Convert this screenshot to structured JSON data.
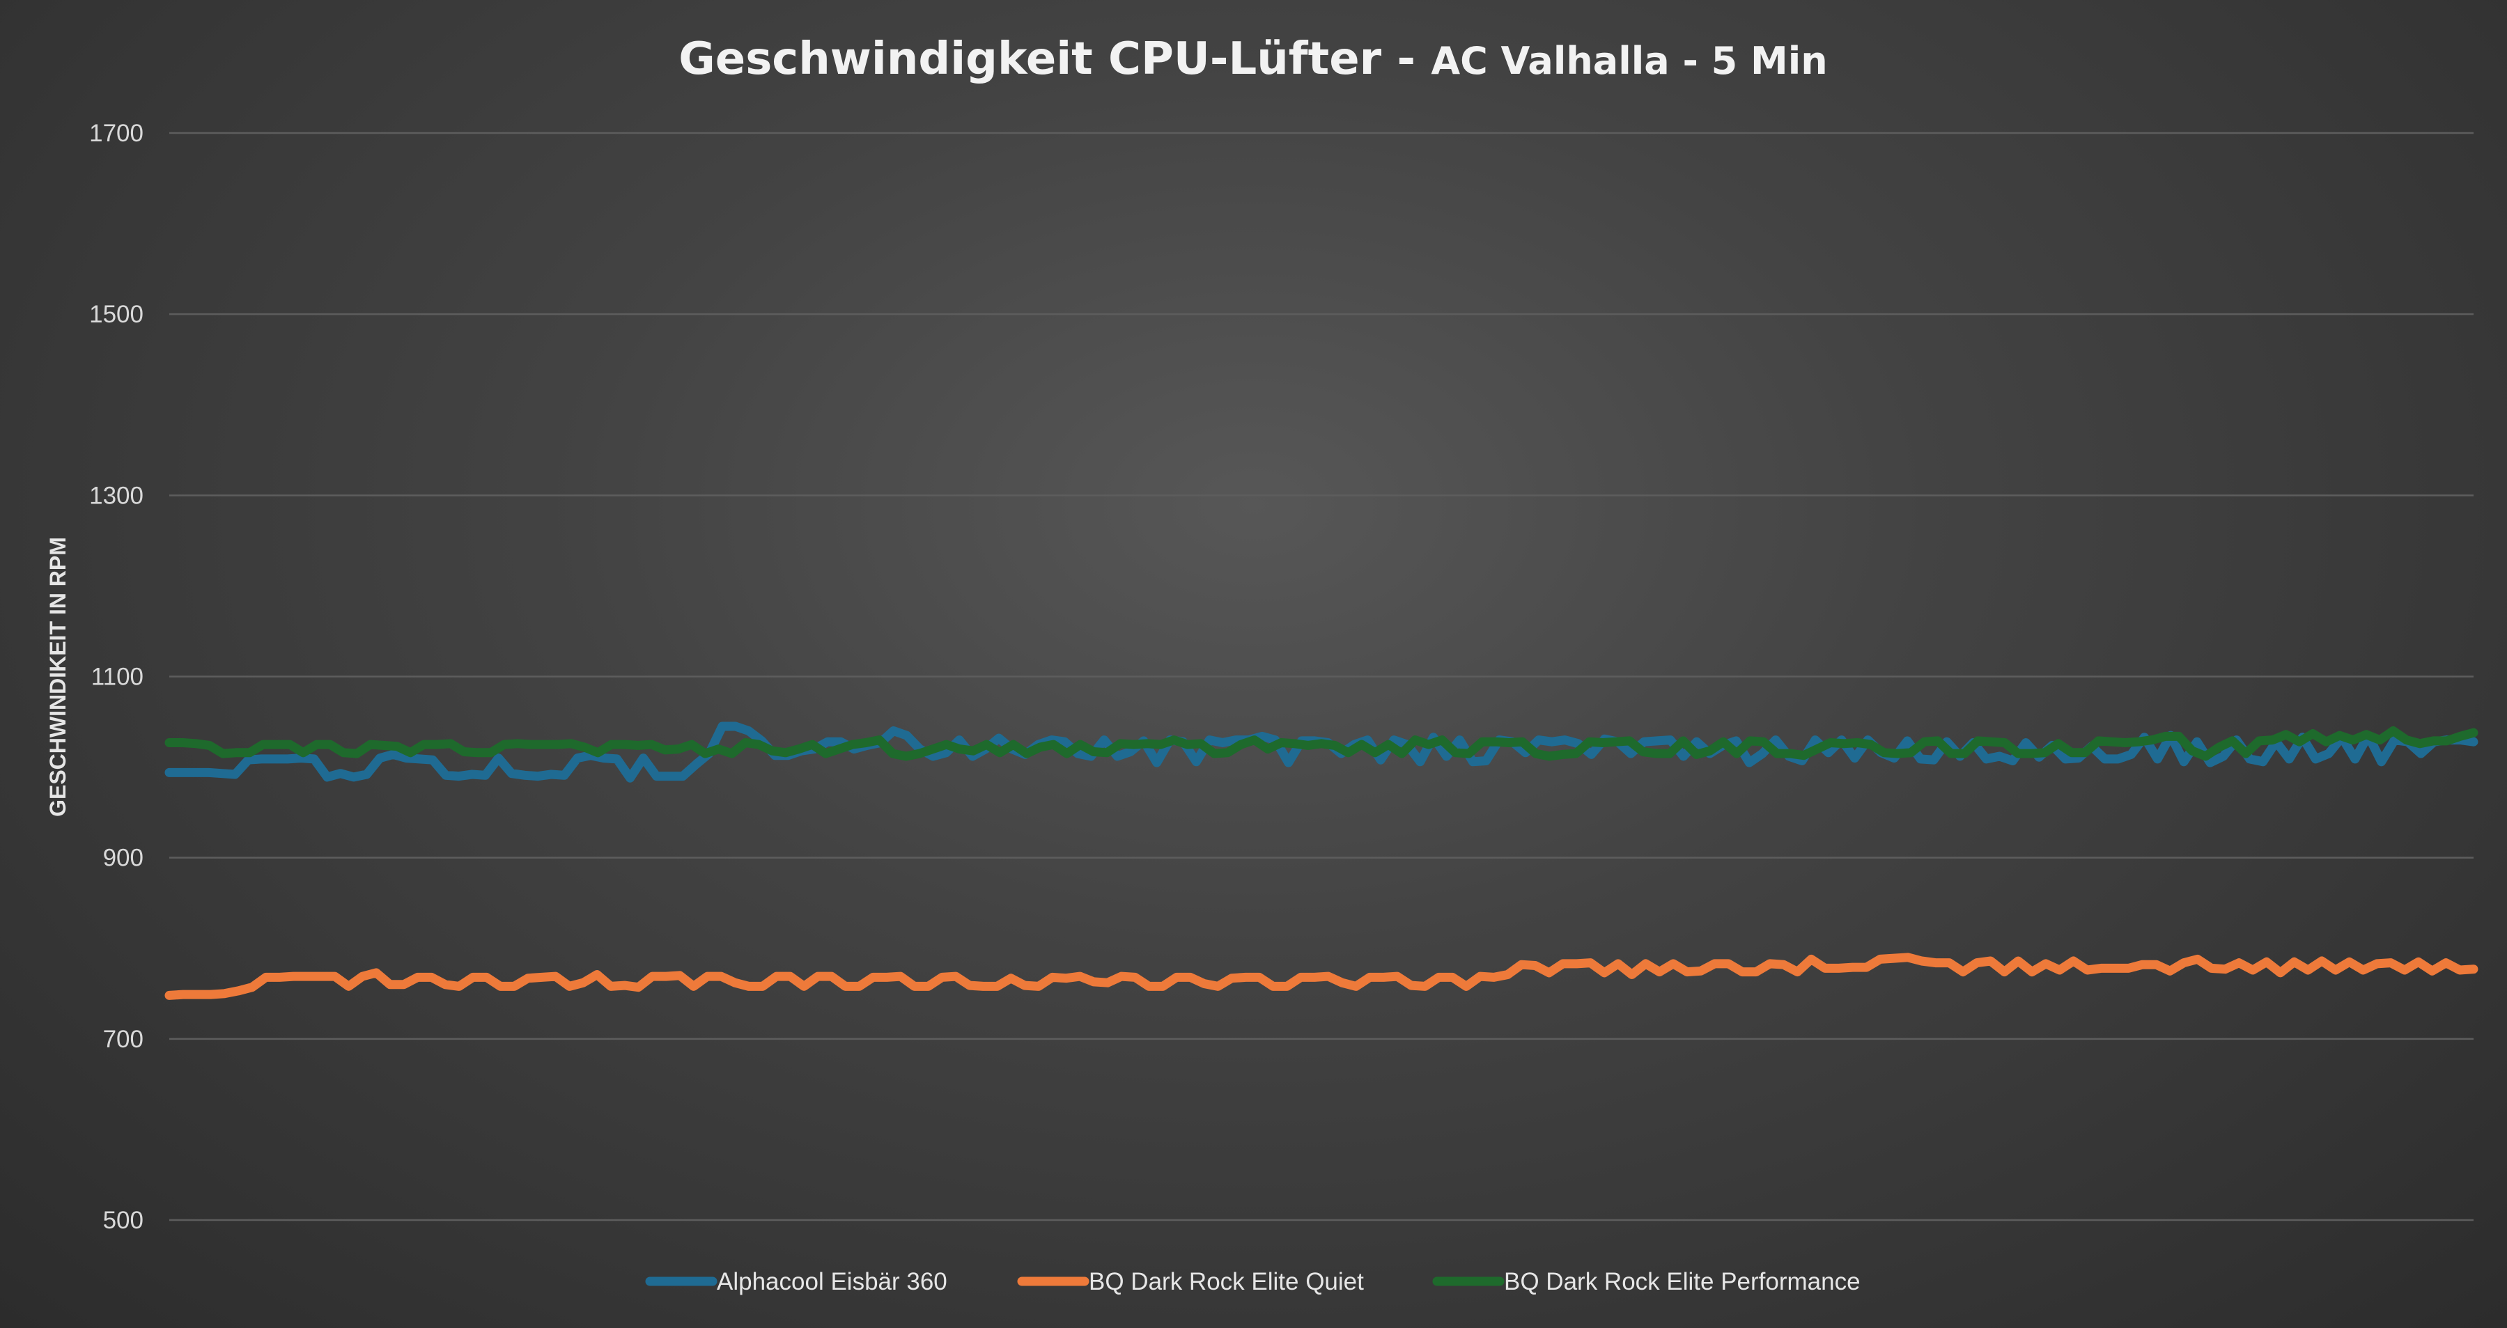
{
  "chart_data": {
    "type": "line",
    "title": "Geschwindigkeit CPU-Lüfter - ",
    "subtitle": "AC Valhalla - 5 Min",
    "xlabel": "",
    "ylabel": "GESCHWINDIKEIT IN RPM",
    "ylim": [
      500,
      1700
    ],
    "yticks": [
      "1700",
      "1500",
      "1300",
      "1100",
      "900",
      "700",
      "500"
    ],
    "grid": true,
    "legend_position": "bottom",
    "series": [
      {
        "name": "Alphacool Eisbär 360",
        "color": "#1f6b93",
        "values": [
          994,
          994,
          994,
          994,
          993,
          992,
          1008,
          1009,
          1009,
          1009,
          1010,
          1009,
          989,
          993,
          989,
          992,
          1010,
          1014,
          1010,
          1009,
          1008,
          991,
          990,
          992,
          991,
          1010,
          993,
          991,
          990,
          992,
          991,
          1010,
          1013,
          1010,
          1009,
          988,
          1010,
          990,
          990,
          990,
          1003,
          1015,
          1045,
          1045,
          1040,
          1029,
          1013,
          1013,
          1018,
          1020,
          1028,
          1028,
          1020,
          1024,
          1027,
          1040,
          1035,
          1020,
          1012,
          1016,
          1030,
          1012,
          1020,
          1032,
          1020,
          1014,
          1025,
          1030,
          1028,
          1015,
          1012,
          1030,
          1012,
          1017,
          1029,
          1005,
          1030,
          1028,
          1006,
          1030,
          1027,
          1030,
          1030,
          1034,
          1030,
          1005,
          1029,
          1029,
          1027,
          1015,
          1025,
          1030,
          1008,
          1030,
          1025,
          1006,
          1033,
          1012,
          1030,
          1006,
          1007,
          1030,
          1028,
          1016,
          1030,
          1028,
          1030,
          1026,
          1014,
          1031,
          1028,
          1015,
          1028,
          1029,
          1030,
          1012,
          1028,
          1015,
          1024,
          1029,
          1005,
          1015,
          1030,
          1012,
          1007,
          1030,
          1016,
          1030,
          1010,
          1030,
          1016,
          1010,
          1029,
          1009,
          1008,
          1028,
          1012,
          1027,
          1009,
          1012,
          1007,
          1027,
          1011,
          1024,
          1009,
          1010,
          1023,
          1009,
          1009,
          1014,
          1033,
          1009,
          1035,
          1006,
          1028,
          1005,
          1012,
          1030,
          1009,
          1006,
          1028,
          1009,
          1033,
          1009,
          1015,
          1033,
          1009,
          1035,
          1006,
          1030,
          1028,
          1015,
          1028,
          1030,
          1030,
          1028
        ]
      },
      {
        "name": "BQ Dark Rock Elite Quiet",
        "color": "#ee7a3a",
        "values": [
          748,
          749,
          749,
          749,
          750,
          753,
          757,
          768,
          768,
          769,
          769,
          769,
          769,
          758,
          769,
          773,
          760,
          760,
          768,
          768,
          760,
          758,
          768,
          768,
          758,
          758,
          767,
          768,
          769,
          758,
          762,
          771,
          758,
          759,
          757,
          769,
          769,
          770,
          758,
          769,
          769,
          762,
          758,
          758,
          769,
          769,
          758,
          769,
          769,
          758,
          758,
          768,
          768,
          769,
          758,
          758,
          768,
          769,
          759,
          758,
          758,
          767,
          759,
          758,
          768,
          767,
          769,
          763,
          762,
          769,
          768,
          758,
          758,
          768,
          768,
          761,
          758,
          767,
          768,
          768,
          758,
          758,
          768,
          768,
          769,
          762,
          758,
          768,
          768,
          769,
          759,
          758,
          768,
          768,
          758,
          769,
          768,
          771,
          782,
          781,
          773,
          783,
          783,
          784,
          773,
          783,
          771,
          783,
          774,
          783,
          774,
          775,
          783,
          783,
          774,
          774,
          783,
          782,
          774,
          788,
          778,
          778,
          779,
          779,
          788,
          789,
          790,
          786,
          784,
          784,
          774,
          784,
          786,
          774,
          786,
          774,
          783,
          776,
          786,
          776,
          778,
          778,
          778,
          782,
          782,
          775,
          784,
          788,
          778,
          777,
          784,
          776,
          785,
          773,
          785,
          776,
          786,
          776,
          785,
          776,
          783,
          784,
          776,
          785,
          775,
          784,
          776,
          777
        ]
      },
      {
        "name": "BQ Dark Rock Elite Performance",
        "color": "#1e6a2c",
        "values": [
          1027,
          1027,
          1026,
          1024,
          1015,
          1016,
          1016,
          1025,
          1025,
          1025,
          1016,
          1025,
          1025,
          1016,
          1015,
          1025,
          1024,
          1023,
          1016,
          1025,
          1025,
          1026,
          1017,
          1016,
          1016,
          1025,
          1026,
          1025,
          1025,
          1025,
          1026,
          1022,
          1016,
          1025,
          1025,
          1024,
          1025,
          1019,
          1020,
          1025,
          1015,
          1020,
          1015,
          1027,
          1025,
          1018,
          1016,
          1020,
          1025,
          1015,
          1020,
          1025,
          1027,
          1030,
          1015,
          1012,
          1015,
          1020,
          1025,
          1020,
          1018,
          1025,
          1016,
          1025,
          1015,
          1022,
          1025,
          1015,
          1025,
          1017,
          1016,
          1026,
          1025,
          1026,
          1025,
          1030,
          1025,
          1026,
          1015,
          1016,
          1025,
          1030,
          1020,
          1027,
          1026,
          1024,
          1026,
          1024,
          1016,
          1025,
          1016,
          1025,
          1015,
          1030,
          1025,
          1030,
          1016,
          1015,
          1028,
          1028,
          1027,
          1028,
          1015,
          1012,
          1014,
          1015,
          1028,
          1027,
          1028,
          1029,
          1017,
          1015,
          1015,
          1029,
          1014,
          1018,
          1028,
          1015,
          1029,
          1028,
          1015,
          1015,
          1013,
          1020,
          1027,
          1026,
          1027,
          1025,
          1016,
          1015,
          1016,
          1028,
          1029,
          1015,
          1015,
          1029,
          1028,
          1027,
          1015,
          1015,
          1016,
          1026,
          1016,
          1016,
          1029,
          1028,
          1027,
          1028,
          1030,
          1034,
          1034,
          1018,
          1012,
          1022,
          1029,
          1015,
          1029,
          1030,
          1036,
          1028,
          1037,
          1028,
          1035,
          1030,
          1036,
          1030,
          1040,
          1030,
          1026,
          1029,
          1029,
          1034,
          1038
        ]
      }
    ]
  }
}
